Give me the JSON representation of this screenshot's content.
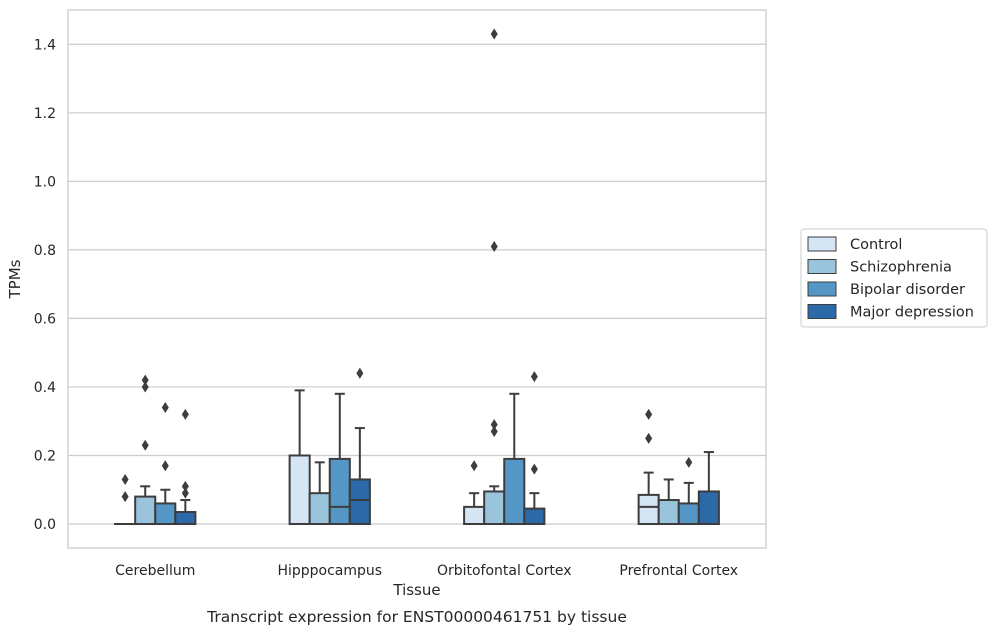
{
  "caption": "Transcript expression for ENST00000461751 by tissue",
  "chart_data": {
    "type": "box",
    "title": "",
    "xlabel": "Tissue",
    "ylabel": "TPMs",
    "ylim": [
      -0.07,
      1.5
    ],
    "yticks": [
      "0.0",
      "0.2",
      "0.4",
      "0.6",
      "0.8",
      "1.0",
      "1.2",
      "1.4"
    ],
    "grid": "horizontal",
    "legend_position": "right",
    "categories": [
      "Cerebellum",
      "Hipppocampus",
      "Orbitofontal Cortex",
      "Prefrontal Cortex"
    ],
    "series": [
      {
        "name": "Control",
        "color": "#d6e5f4",
        "boxes": [
          {
            "q1": 0,
            "median": 0,
            "q3": 0,
            "whislo": 0,
            "whishi": 0,
            "fliers": [
              0.08,
              0.13
            ]
          },
          {
            "q1": 0,
            "median": 0,
            "q3": 0.2,
            "whislo": 0,
            "whishi": 0.39,
            "fliers": []
          },
          {
            "q1": 0,
            "median": 0,
            "q3": 0.05,
            "whislo": 0,
            "whishi": 0.09,
            "fliers": [
              0.17
            ]
          },
          {
            "q1": 0,
            "median": 0.05,
            "q3": 0.085,
            "whislo": 0,
            "whishi": 0.15,
            "fliers": [
              0.25,
              0.32
            ]
          }
        ]
      },
      {
        "name": "Schizophrenia",
        "color": "#9ac3dc",
        "boxes": [
          {
            "q1": 0,
            "median": 0,
            "q3": 0.08,
            "whislo": 0,
            "whishi": 0.11,
            "fliers": [
              0.23,
              0.4,
              0.42
            ]
          },
          {
            "q1": 0,
            "median": 0,
            "q3": 0.09,
            "whislo": 0,
            "whishi": 0.18,
            "fliers": []
          },
          {
            "q1": 0,
            "median": 0,
            "q3": 0.095,
            "whislo": 0,
            "whishi": 0.11,
            "fliers": [
              0.27,
              0.29,
              0.81,
              1.43
            ]
          },
          {
            "q1": 0,
            "median": 0,
            "q3": 0.07,
            "whislo": 0,
            "whishi": 0.13,
            "fliers": []
          }
        ]
      },
      {
        "name": "Bipolar disorder",
        "color": "#5497c6",
        "boxes": [
          {
            "q1": 0,
            "median": 0,
            "q3": 0.06,
            "whislo": 0,
            "whishi": 0.1,
            "fliers": [
              0.17,
              0.34
            ]
          },
          {
            "q1": 0,
            "median": 0.05,
            "q3": 0.19,
            "whislo": 0,
            "whishi": 0.38,
            "fliers": []
          },
          {
            "q1": 0,
            "median": 0,
            "q3": 0.19,
            "whislo": 0,
            "whishi": 0.38,
            "fliers": []
          },
          {
            "q1": 0,
            "median": 0,
            "q3": 0.06,
            "whislo": 0,
            "whishi": 0.12,
            "fliers": [
              0.18
            ]
          }
        ]
      },
      {
        "name": "Major depression",
        "color": "#2b69a8",
        "boxes": [
          {
            "q1": 0,
            "median": 0,
            "q3": 0.035,
            "whislo": 0,
            "whishi": 0.07,
            "fliers": [
              0.09,
              0.11,
              0.32
            ]
          },
          {
            "q1": 0,
            "median": 0.07,
            "q3": 0.13,
            "whislo": 0,
            "whishi": 0.28,
            "fliers": [
              0.44
            ]
          },
          {
            "q1": 0,
            "median": 0,
            "q3": 0.045,
            "whislo": 0,
            "whishi": 0.09,
            "fliers": [
              0.16,
              0.43
            ]
          },
          {
            "q1": 0,
            "median": 0,
            "q3": 0.095,
            "whislo": 0,
            "whishi": 0.21,
            "fliers": []
          }
        ]
      }
    ]
  }
}
